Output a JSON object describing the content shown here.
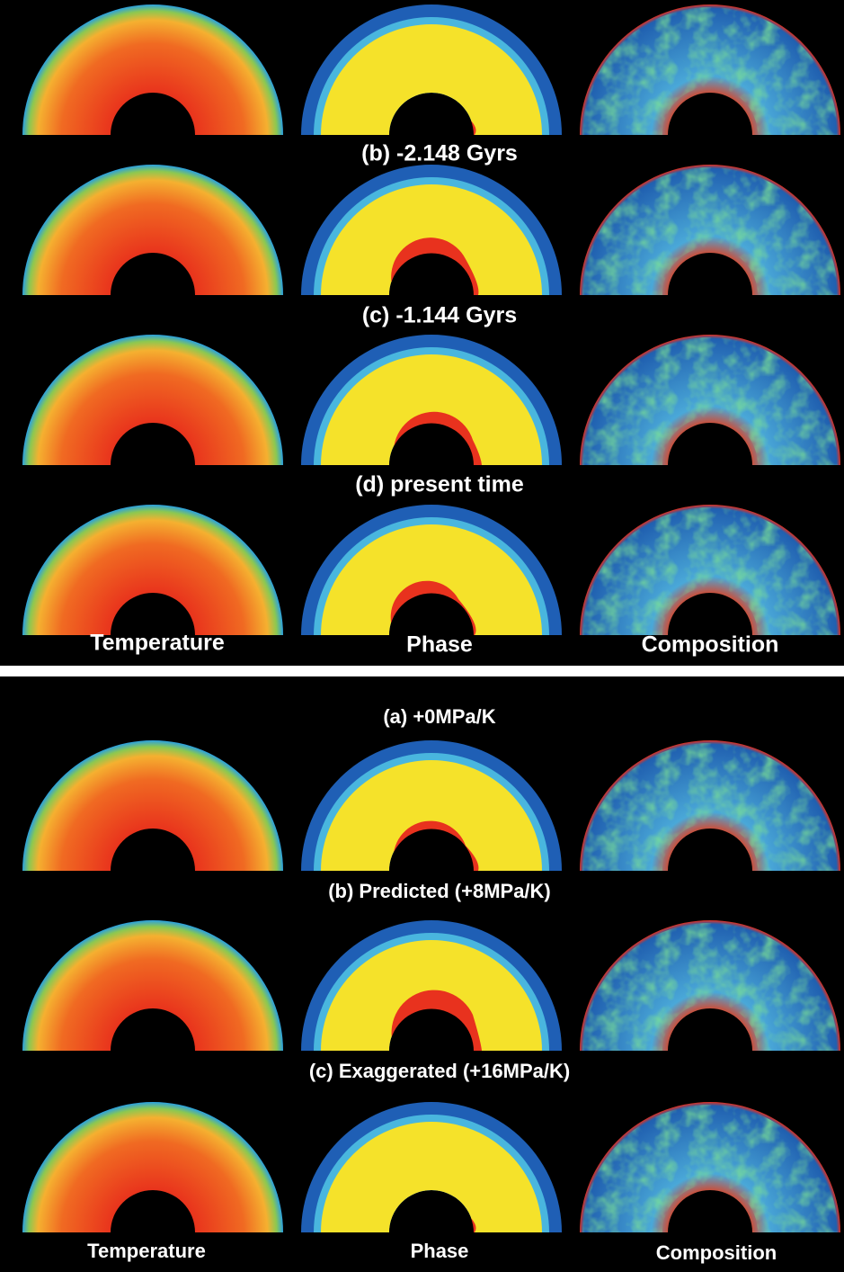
{
  "top_panel": {
    "row_labels": [
      "(b) -2.148 Gyrs",
      "(c) -1.144 Gyrs",
      "(d) present time"
    ],
    "column_labels": [
      "Temperature",
      "Phase",
      "Composition"
    ]
  },
  "bottom_panel": {
    "row_labels": [
      "(a) +0MPa/K",
      "(b) Predicted (+8MPa/K)",
      "(c) Exaggerated (+16MPa/K)"
    ],
    "column_labels": [
      "Temperature",
      "Phase",
      "Composition"
    ]
  }
}
